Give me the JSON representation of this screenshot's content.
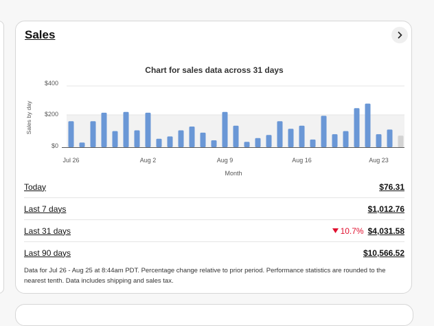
{
  "card": {
    "title": "Sales",
    "nav_icon": "chevron-right-icon"
  },
  "chart_data": {
    "type": "bar",
    "title": "Chart for sales data across 31 days",
    "xlabel": "Month",
    "ylabel": "Sales by day",
    "ylim": [
      0,
      400
    ],
    "yticks": [
      "$0",
      "$200",
      "$400"
    ],
    "xticks": [
      "Jul 26",
      "Aug 2",
      "Aug 9",
      "Aug 16",
      "Aug 23"
    ],
    "categories": [
      "Jul 26",
      "Jul 27",
      "Jul 28",
      "Jul 29",
      "Jul 30",
      "Jul 31",
      "Aug 1",
      "Aug 2",
      "Aug 3",
      "Aug 4",
      "Aug 5",
      "Aug 6",
      "Aug 7",
      "Aug 8",
      "Aug 9",
      "Aug 10",
      "Aug 11",
      "Aug 12",
      "Aug 13",
      "Aug 14",
      "Aug 15",
      "Aug 16",
      "Aug 17",
      "Aug 18",
      "Aug 19",
      "Aug 20",
      "Aug 21",
      "Aug 22",
      "Aug 23",
      "Aug 24",
      "Aug 25"
    ],
    "values": [
      170,
      30,
      170,
      225,
      105,
      230,
      110,
      225,
      55,
      70,
      110,
      135,
      95,
      45,
      230,
      140,
      35,
      60,
      80,
      170,
      120,
      140,
      50,
      205,
      85,
      105,
      255,
      285,
      85,
      115,
      75
    ],
    "partial_last_day": true,
    "colors": {
      "bar": "#6a97d6",
      "partial_bar": "#d3d3d3",
      "band": "#f2f2f2"
    },
    "grid": true,
    "legend": "none"
  },
  "rows": [
    {
      "label": "Today",
      "value": "$76.31"
    },
    {
      "label": "Last 7 days",
      "value": "$1,012.76"
    },
    {
      "label": "Last 31 days",
      "value": "$4,031.58",
      "change": "10.7%",
      "change_icon": "triangle-down-icon",
      "change_color": "#e0102f"
    },
    {
      "label": "Last 90 days",
      "value": "$10,566.52"
    }
  ],
  "footnote": "Data for Jul 26 - Aug 25 at 8:44am PDT. Percentage change relative to prior period. Performance statistics are rounded to the nearest tenth. Data includes shipping and sales tax."
}
